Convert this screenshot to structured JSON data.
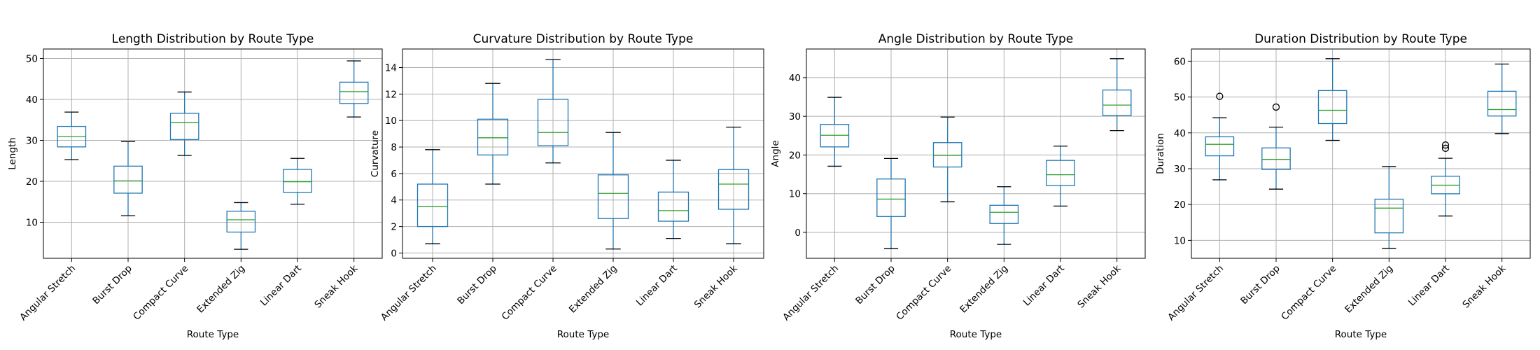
{
  "chart_data": [
    {
      "type": "box",
      "title": "Length Distribution by Route Type",
      "xlabel": "Route Type",
      "ylabel": "Length",
      "ylim": [
        1.2,
        52.3
      ],
      "yticks": [
        10,
        20,
        30,
        40,
        50
      ],
      "grid": true,
      "categories": [
        "Angular Stretch",
        "Burst Drop",
        "Compact Curve",
        "Extended Zig",
        "Linear Dart",
        "Sneak Hook"
      ],
      "boxes": [
        {
          "whislo": 25.3,
          "q1": 28.4,
          "med": 30.9,
          "q3": 33.4,
          "whishi": 36.9,
          "fliers": []
        },
        {
          "whislo": 11.6,
          "q1": 17.1,
          "med": 20.1,
          "q3": 23.7,
          "whishi": 29.7,
          "fliers": []
        },
        {
          "whislo": 26.3,
          "q1": 30.2,
          "med": 34.3,
          "q3": 36.6,
          "whishi": 41.8,
          "fliers": []
        },
        {
          "whislo": 3.4,
          "q1": 7.6,
          "med": 10.6,
          "q3": 12.7,
          "whishi": 14.8,
          "fliers": []
        },
        {
          "whislo": 14.4,
          "q1": 17.3,
          "med": 19.9,
          "q3": 22.9,
          "whishi": 25.6,
          "fliers": []
        },
        {
          "whislo": 35.7,
          "q1": 39.0,
          "med": 41.9,
          "q3": 44.2,
          "whishi": 49.4,
          "fliers": []
        }
      ]
    },
    {
      "type": "box",
      "title": "Curvature Distribution by Route Type",
      "xlabel": "Route Type",
      "ylabel": "Curvature",
      "ylim": [
        -0.4,
        15.4
      ],
      "yticks": [
        0,
        2,
        4,
        6,
        8,
        10,
        12,
        14
      ],
      "grid": true,
      "categories": [
        "Angular Stretch",
        "Burst Drop",
        "Compact Curve",
        "Extended Zig",
        "Linear Dart",
        "Sneak Hook"
      ],
      "boxes": [
        {
          "whislo": 0.7,
          "q1": 2.0,
          "med": 3.5,
          "q3": 5.2,
          "whishi": 7.8,
          "fliers": []
        },
        {
          "whislo": 5.2,
          "q1": 7.4,
          "med": 8.7,
          "q3": 10.1,
          "whishi": 12.8,
          "fliers": []
        },
        {
          "whislo": 6.8,
          "q1": 8.1,
          "med": 9.1,
          "q3": 11.6,
          "whishi": 14.6,
          "fliers": []
        },
        {
          "whislo": 0.3,
          "q1": 2.6,
          "med": 4.5,
          "q3": 5.9,
          "whishi": 9.1,
          "fliers": []
        },
        {
          "whislo": 1.1,
          "q1": 2.4,
          "med": 3.2,
          "q3": 4.6,
          "whishi": 7.0,
          "fliers": []
        },
        {
          "whislo": 0.7,
          "q1": 3.3,
          "med": 5.2,
          "q3": 6.3,
          "whishi": 9.5,
          "fliers": []
        }
      ]
    },
    {
      "type": "box",
      "title": "Angle Distribution by Route Type",
      "xlabel": "Route Type",
      "ylabel": "Angle",
      "ylim": [
        -6.7,
        47.4
      ],
      "yticks": [
        0,
        10,
        20,
        30,
        40
      ],
      "grid": true,
      "categories": [
        "Angular Stretch",
        "Burst Drop",
        "Compact Curve",
        "Extended Zig",
        "Linear Dart",
        "Sneak Hook"
      ],
      "boxes": [
        {
          "whislo": 17.1,
          "q1": 22.1,
          "med": 25.1,
          "q3": 27.9,
          "whishi": 34.9,
          "fliers": []
        },
        {
          "whislo": -4.2,
          "q1": 4.1,
          "med": 8.6,
          "q3": 13.8,
          "whishi": 19.1,
          "fliers": []
        },
        {
          "whislo": 7.9,
          "q1": 16.9,
          "med": 19.9,
          "q3": 23.2,
          "whishi": 29.8,
          "fliers": []
        },
        {
          "whislo": -3.1,
          "q1": 2.3,
          "med": 5.2,
          "q3": 7.0,
          "whishi": 11.8,
          "fliers": []
        },
        {
          "whislo": 6.8,
          "q1": 12.1,
          "med": 14.9,
          "q3": 18.6,
          "whishi": 22.3,
          "fliers": []
        },
        {
          "whislo": 26.3,
          "q1": 30.2,
          "med": 32.9,
          "q3": 36.8,
          "whishi": 44.9,
          "fliers": []
        }
      ]
    },
    {
      "type": "box",
      "title": "Duration Distribution by Route Type",
      "xlabel": "Route Type",
      "ylabel": "Duration",
      "ylim": [
        5.0,
        63.4
      ],
      "yticks": [
        10,
        20,
        30,
        40,
        50,
        60
      ],
      "grid": true,
      "categories": [
        "Angular Stretch",
        "Burst Drop",
        "Compact Curve",
        "Extended Zig",
        "Linear Dart",
        "Sneak Hook"
      ],
      "boxes": [
        {
          "whislo": 26.9,
          "q1": 33.6,
          "med": 36.8,
          "q3": 38.9,
          "whishi": 44.2,
          "fliers": [
            50.2
          ]
        },
        {
          "whislo": 24.3,
          "q1": 29.8,
          "med": 32.6,
          "q3": 35.8,
          "whishi": 41.6,
          "fliers": [
            47.2
          ]
        },
        {
          "whislo": 37.9,
          "q1": 42.6,
          "med": 46.3,
          "q3": 51.8,
          "whishi": 60.7,
          "fliers": []
        },
        {
          "whislo": 7.8,
          "q1": 12.1,
          "med": 19.0,
          "q3": 21.5,
          "whishi": 30.6,
          "fliers": []
        },
        {
          "whislo": 16.8,
          "q1": 23.0,
          "med": 25.4,
          "q3": 27.9,
          "whishi": 32.9,
          "fliers": [
            35.7,
            36.6
          ]
        },
        {
          "whislo": 39.8,
          "q1": 44.7,
          "med": 46.5,
          "q3": 51.6,
          "whishi": 59.2,
          "fliers": []
        }
      ]
    }
  ]
}
